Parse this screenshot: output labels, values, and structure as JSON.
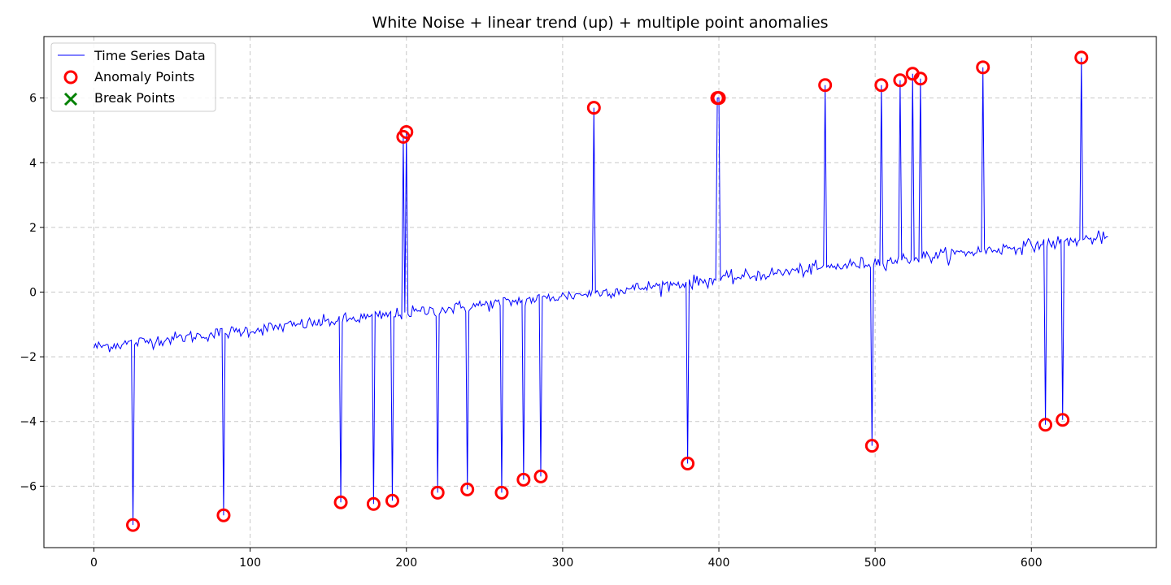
{
  "chart_data": {
    "type": "line",
    "title": "White Noise + linear trend (up) + multiple point anomalies",
    "xlabel": "",
    "ylabel": "",
    "xlim": [
      -32,
      680
    ],
    "ylim": [
      -7.9,
      7.9
    ],
    "xticks": [
      0,
      100,
      200,
      300,
      400,
      500,
      600
    ],
    "yticks": [
      -6,
      -4,
      -2,
      0,
      2,
      4,
      6
    ],
    "grid": true,
    "legend_position": "top-left",
    "n_points": 650,
    "trend": {
      "start": -1.7,
      "end": 1.7
    },
    "series": [
      {
        "name": "Time Series Data",
        "color": "#0000ff",
        "marker": "line"
      },
      {
        "name": "Anomaly Points",
        "color": "#ff0000",
        "marker": "circle"
      },
      {
        "name": "Break Points",
        "color": "#008000",
        "marker": "x"
      }
    ],
    "anomalies": [
      [
        25,
        -7.2
      ],
      [
        83,
        -6.9
      ],
      [
        158,
        -6.5
      ],
      [
        179,
        -6.55
      ],
      [
        191,
        -6.45
      ],
      [
        198,
        4.8
      ],
      [
        200,
        4.95
      ],
      [
        220,
        -6.2
      ],
      [
        239,
        -6.1
      ],
      [
        261,
        -6.2
      ],
      [
        275,
        -5.8
      ],
      [
        286,
        -5.7
      ],
      [
        320,
        5.7
      ],
      [
        380,
        -5.3
      ],
      [
        399,
        6.0
      ],
      [
        400,
        6.0
      ],
      [
        468,
        6.4
      ],
      [
        498,
        -4.75
      ],
      [
        504,
        6.4
      ],
      [
        516,
        6.55
      ],
      [
        524,
        6.75
      ],
      [
        529,
        6.6
      ],
      [
        569,
        6.95
      ],
      [
        609,
        -4.1
      ],
      [
        620,
        -3.95
      ],
      [
        632,
        7.25
      ]
    ],
    "break_points": []
  }
}
